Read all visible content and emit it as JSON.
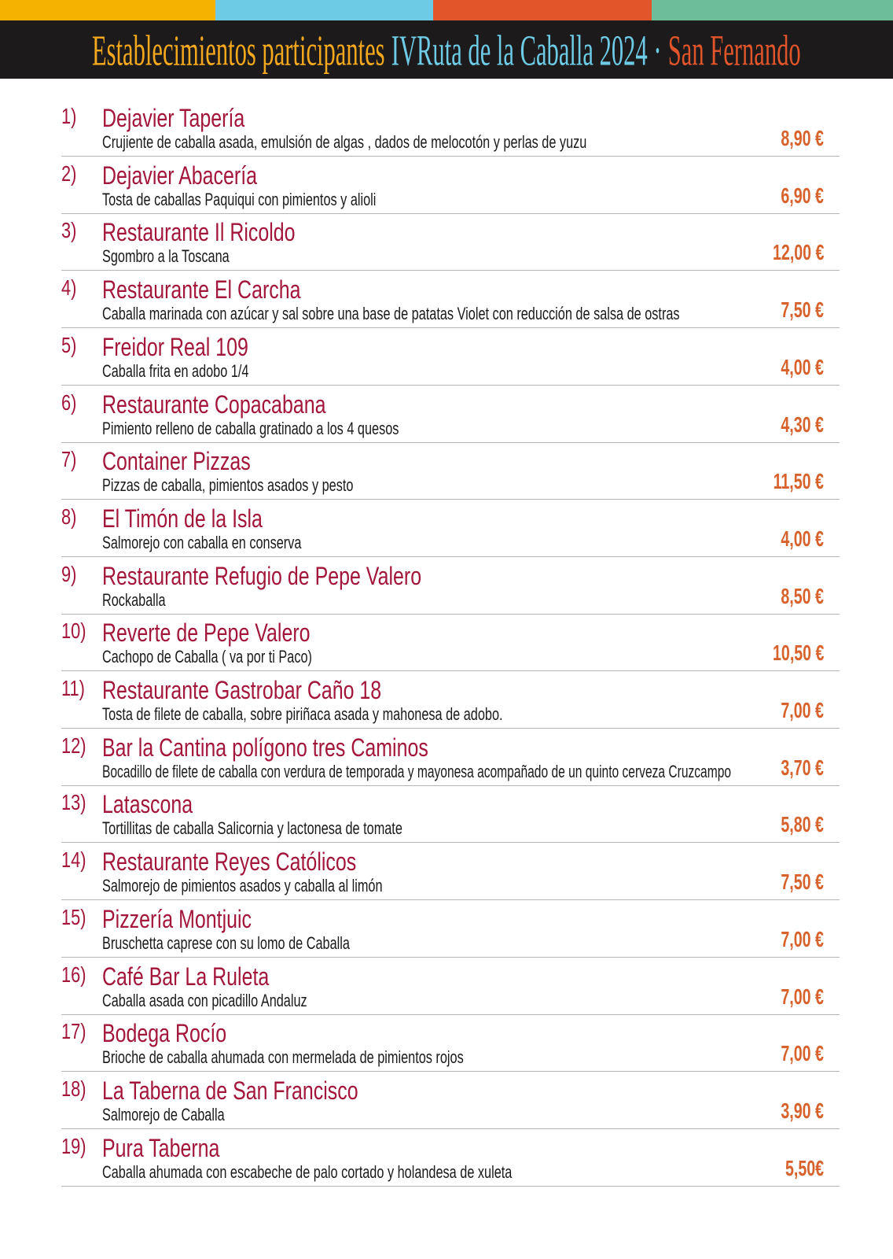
{
  "header": {
    "title_parts": [
      "Establecimientos participantes",
      "IVRuta de la Caballa 2024 ·",
      "San Fernando"
    ]
  },
  "items": [
    {
      "number": "1)",
      "name": "Dejavier Tapería",
      "dish": "Crujiente de caballa asada, emulsión de algas , dados de melocotón y perlas de yuzu",
      "price": "8,90 €"
    },
    {
      "number": "2)",
      "name": "Dejavier Abacería",
      "dish": "Tosta de caballas Paquiqui con pimientos y alioli",
      "price": "6,90 €"
    },
    {
      "number": "3)",
      "name": "Restaurante Il Ricoldo",
      "dish": "Sgombro a la Toscana",
      "price": "12,00 €"
    },
    {
      "number": "4)",
      "name": "Restaurante El Carcha",
      "dish": "Caballa marinada con azúcar y sal sobre una base de patatas Violet con reducción de salsa de ostras",
      "price": "7,50 €"
    },
    {
      "number": "5)",
      "name": "Freidor Real 109",
      "dish": "Caballa frita en adobo  1/4",
      "price": "4,00 €"
    },
    {
      "number": "6)",
      "name": "Restaurante Copacabana",
      "dish": "Pimiento relleno de caballa gratinado a los 4 quesos",
      "price": "4,30 €"
    },
    {
      "number": "7)",
      "name": "Container Pizzas",
      "dish": "Pizzas de caballa, pimientos asados y pesto",
      "price": "11,50 €"
    },
    {
      "number": "8)",
      "name": "El Timón de la Isla",
      "dish": "Salmorejo con caballa en conserva",
      "price": "4,00 €"
    },
    {
      "number": "9)",
      "name": "Restaurante Refugio de Pepe Valero",
      "dish": "Rockaballa",
      "price": "8,50 €"
    },
    {
      "number": "10)",
      "name": "Reverte de Pepe Valero",
      "dish": "Cachopo de Caballa ( va por ti Paco)",
      "price": "10,50 €"
    },
    {
      "number": "11)",
      "name": "Restaurante Gastrobar Caño 18",
      "dish": "Tosta de filete de caballa, sobre piriñaca asada y mahonesa de adobo.",
      "price": "7,00 €"
    },
    {
      "number": "12)",
      "name": "Bar la Cantina polígono tres Caminos",
      "dish": "Bocadillo de filete de caballa con verdura de temporada y mayonesa  acompañado de un quinto cerveza Cruzcampo",
      "price": "3,70 €"
    },
    {
      "number": "13)",
      "name": "Latascona",
      "dish": "Tortillitas de caballa Salicornia y lactonesa de tomate",
      "price": "5,80 €"
    },
    {
      "number": "14)",
      "name": "Restaurante Reyes Católicos",
      "dish": "Salmorejo de pimientos asados y caballa al limón",
      "price": "7,50 €"
    },
    {
      "number": "15)",
      "name": "Pizzería Montjuic",
      "dish": "Bruschetta caprese con su lomo de Caballa",
      "price": "7,00 €"
    },
    {
      "number": "16)",
      "name": "Café Bar La Ruleta",
      "dish": "Caballa asada con picadillo Andaluz",
      "price": "7,00 €"
    },
    {
      "number": "17)",
      "name": "Bodega Rocío",
      "dish": "Brioche de caballa ahumada  con mermelada de pimientos rojos",
      "price": "7,00 €"
    },
    {
      "number": "18)",
      "name": "La Taberna de San Francisco",
      "dish": "Salmorejo de Caballa",
      "price": "3,90 €"
    },
    {
      "number": "19)",
      "name": "Pura Taberna",
      "dish": "Caballa ahumada con escabeche de palo cortado y holandesa de xuleta",
      "price": "5,50€"
    }
  ]
}
